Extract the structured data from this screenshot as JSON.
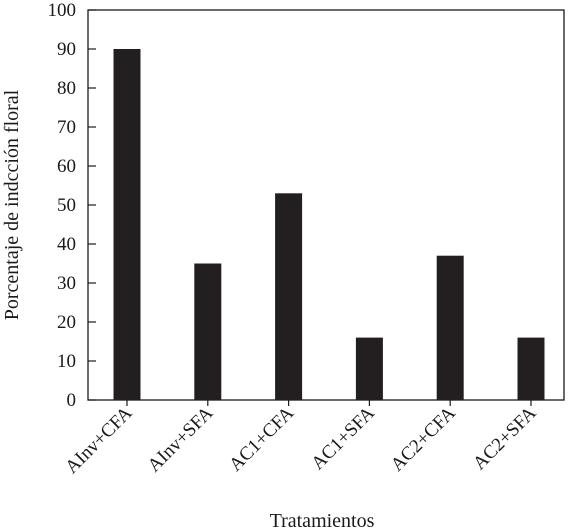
{
  "chart_data": {
    "type": "bar",
    "title": "",
    "xlabel": "Tratamientos",
    "ylabel": "Porcentaje de indcción floral",
    "categories": [
      "AInv+CFA",
      "AInv+SFA",
      "AC1+CFA",
      "AC1+SFA",
      "AC2+CFA",
      "AC2+SFA"
    ],
    "values": [
      90,
      35,
      53,
      16,
      37,
      16
    ],
    "ylim": [
      0,
      100
    ],
    "yticks": [
      0,
      10,
      20,
      30,
      40,
      50,
      60,
      70,
      80,
      90,
      100
    ],
    "grid": false,
    "legend": "none",
    "bar_color": "#231f20"
  }
}
